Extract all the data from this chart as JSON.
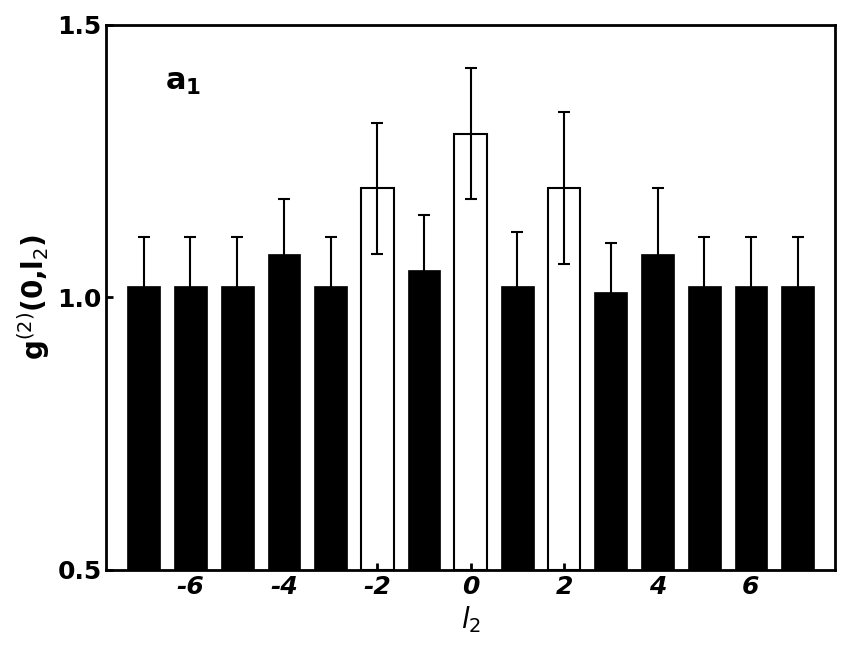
{
  "x_values": [
    -7,
    -6,
    -5,
    -4,
    -3,
    -2,
    -1,
    0,
    1,
    2,
    3,
    4,
    5,
    6,
    7
  ],
  "bar_heights": [
    1.02,
    1.02,
    1.02,
    1.08,
    1.02,
    1.2,
    1.05,
    1.3,
    1.02,
    1.2,
    1.01,
    1.08,
    1.02,
    1.02,
    1.02
  ],
  "bar_errors": [
    0.09,
    0.09,
    0.09,
    0.1,
    0.09,
    0.12,
    0.1,
    0.12,
    0.1,
    0.14,
    0.09,
    0.12,
    0.09,
    0.09,
    0.09
  ],
  "hollow_bars": [
    -2,
    0,
    2
  ],
  "bar_color": "#000000",
  "hollow_color": "#ffffff",
  "bar_edge_color": "#000000",
  "ylabel": "g$^{(2)}$(0,l$_2$)",
  "xlabel": "$l_2$",
  "ylim": [
    0.5,
    1.5
  ],
  "yticks": [
    0.5,
    1.0,
    1.5
  ],
  "xtick_labels": [
    "-6",
    "-4",
    "-2",
    "0",
    "2",
    "4",
    "6"
  ],
  "xtick_positions": [
    -6,
    -4,
    -2,
    0,
    2,
    4,
    6
  ],
  "background_color": "#ffffff",
  "bar_width": 0.7,
  "errorbar_capsize": 4,
  "errorbar_linewidth": 1.5,
  "font_size_label": 20,
  "font_size_tick": 18,
  "font_size_annotation": 22
}
